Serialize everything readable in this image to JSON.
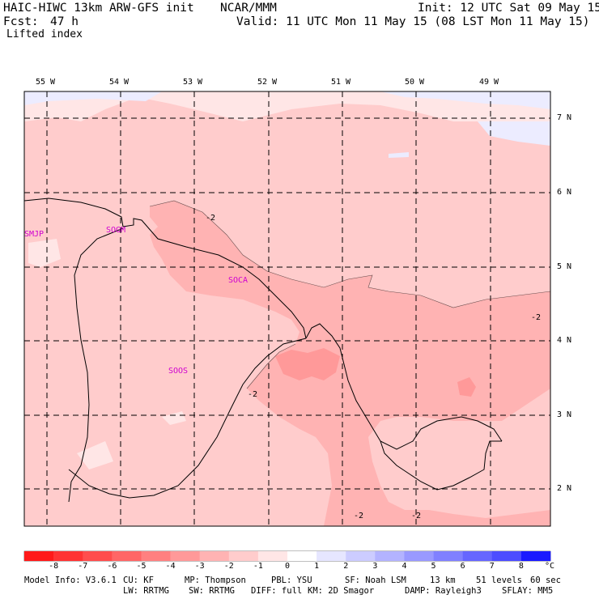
{
  "header": {
    "model": "HAIC-HIWC 13km ARW-GFS init",
    "org": "NCAR/MMM",
    "init": "Init: 12 UTC Sat 09 May 15",
    "fcst_label": "Fcst:",
    "fcst_value": "47 h",
    "valid": "Valid: 11 UTC Mon 11 May 15 (08 LST Mon 11 May 15)",
    "field": "Lifted index"
  },
  "map": {
    "lon_labels": [
      "55 W",
      "54 W",
      "53 W",
      "52 W",
      "51 W",
      "50 W",
      "49 W"
    ],
    "lat_labels": [
      "7 N",
      "6 N",
      "5 N",
      "4 N",
      "3 N",
      "2 N"
    ],
    "stations": [
      "SMJP",
      "SOGM",
      "SOCA",
      "SOOS"
    ],
    "contour_labels": [
      "-2",
      "-2",
      "-2",
      "-2",
      "-2"
    ]
  },
  "colorbar": {
    "ticks": [
      "-8",
      "-7",
      "-6",
      "-5",
      "-4",
      "-3",
      "-2",
      "-1",
      "0",
      "1",
      "2",
      "3",
      "4",
      "5",
      "6",
      "7",
      "8"
    ],
    "unit": "°C",
    "colors": [
      "#ff1a1a",
      "#ff3333",
      "#ff4d4d",
      "#ff6666",
      "#ff8080",
      "#ff9999",
      "#ffb3b3",
      "#ffcccc",
      "#ffe6e6",
      "#ffffff",
      "#e6e6ff",
      "#ccccff",
      "#b3b3ff",
      "#9999ff",
      "#8080ff",
      "#6666ff",
      "#4d4dff",
      "#1a1aff"
    ]
  },
  "footer": {
    "line1": [
      "Model Info: V3.6.1",
      "CU: KF",
      "MP: Thompson",
      "PBL: YSU",
      "SF: Noah LSM",
      "13 km",
      "51 levels",
      "60 sec"
    ],
    "line2": [
      "LW: RRTMG",
      "SW: RRTMG",
      "DIFF: full",
      "KM: 2D Smagor",
      "DAMP: Rayleigh3",
      "SFLAY: MM5"
    ]
  }
}
